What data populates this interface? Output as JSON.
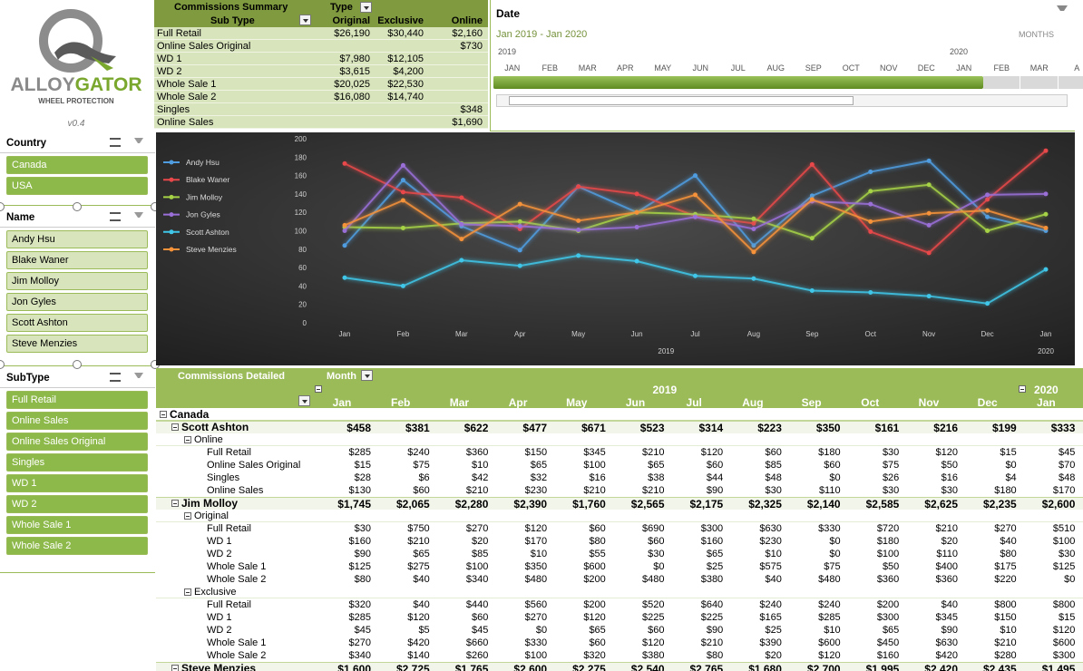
{
  "logo": {
    "brand": "ALLOYGATOR",
    "tagline": "WHEEL PROTECTION",
    "version": "v0.4"
  },
  "summary": {
    "title": "Commissions Summary",
    "type_label": "Type",
    "row_label": "Sub Type",
    "columns": [
      "Original",
      "Exclusive",
      "Online"
    ],
    "rows": [
      [
        "Full Retail",
        "$26,190",
        "$30,440",
        "$2,160"
      ],
      [
        "Online Sales Original",
        null,
        null,
        "$730"
      ],
      [
        "WD 1",
        "$7,980",
        "$12,105",
        null
      ],
      [
        "WD 2",
        "$3,615",
        "$4,200",
        null
      ],
      [
        "Whole Sale 1",
        "$20,025",
        "$22,530",
        null
      ],
      [
        "Whole Sale 2",
        "$16,080",
        "$14,740",
        null
      ],
      [
        "Singles",
        null,
        null,
        "$348"
      ],
      [
        "Online Sales",
        null,
        null,
        "$1,690"
      ]
    ]
  },
  "timeline": {
    "title": "Date",
    "range": "Jan 2019 - Jan 2020",
    "level": "MONTHS",
    "years": [
      "2019",
      "2020"
    ],
    "months": [
      "JAN",
      "FEB",
      "MAR",
      "APR",
      "MAY",
      "JUN",
      "JUL",
      "AUG",
      "SEP",
      "OCT",
      "NOV",
      "DEC",
      "JAN",
      "FEB",
      "MAR",
      "A"
    ]
  },
  "slicers": [
    {
      "title": "Country",
      "items": [
        "Canada",
        "USA"
      ]
    },
    {
      "title": "Name",
      "items": [
        "Andy Hsu",
        "Blake Waner",
        "Jim Molloy",
        "Jon Gyles",
        "Scott Ashton",
        "Steve Menzies"
      ]
    },
    {
      "title": "SubType",
      "items": [
        "Full Retail",
        "Online Sales",
        "Online Sales Original",
        "Singles",
        "WD 1",
        "WD 2",
        "Whole Sale 1",
        "Whole Sale 2"
      ]
    }
  ],
  "chart_data": {
    "type": "line",
    "categories": [
      "Jan",
      "Feb",
      "Mar",
      "Apr",
      "May",
      "Jun",
      "Jul",
      "Aug",
      "Sep",
      "Oct",
      "Nov",
      "Dec",
      "Jan"
    ],
    "x_group_labels": [
      "2019",
      "2020"
    ],
    "ylim": [
      0,
      200
    ],
    "yticks": [
      0,
      20,
      40,
      60,
      80,
      100,
      120,
      140,
      160,
      180,
      200
    ],
    "legend": "top-left",
    "series": [
      {
        "name": "Andy Hsu",
        "color": "#4f9de0",
        "values": [
          84,
          155,
          105,
          79,
          148,
          120,
          160,
          84,
          138,
          164,
          176,
          115,
          100
        ]
      },
      {
        "name": "Blake Waner",
        "color": "#e8484a",
        "values": [
          173,
          142,
          136,
          102,
          148,
          140,
          116,
          108,
          172,
          99,
          76,
          134,
          187
        ]
      },
      {
        "name": "Jim Molloy",
        "color": "#a6d246",
        "values": [
          104,
          103,
          108,
          110,
          100,
          120,
          118,
          113,
          92,
          143,
          150,
          100,
          118
        ]
      },
      {
        "name": "Jon Gyles",
        "color": "#9a6fd8",
        "values": [
          100,
          171,
          107,
          105,
          101,
          104,
          115,
          102,
          132,
          129,
          106,
          139,
          140
        ]
      },
      {
        "name": "Scott Ashton",
        "color": "#3fc6e8",
        "values": [
          49,
          40,
          68,
          62,
          73,
          67,
          51,
          48,
          35,
          33,
          29,
          21,
          58
        ]
      },
      {
        "name": "Steve Menzies",
        "color": "#f5923a",
        "values": [
          106,
          133,
          91,
          129,
          111,
          120,
          139,
          77,
          134,
          110,
          119,
          122,
          103
        ]
      }
    ]
  },
  "detail": {
    "title": "Commissions Detailed",
    "column_label": "Month",
    "years": [
      "2019",
      "2020"
    ],
    "months": [
      "Jan",
      "Feb",
      "Mar",
      "Apr",
      "May",
      "Jun",
      "Jul",
      "Aug",
      "Sep",
      "Oct",
      "Nov",
      "Dec",
      "Jan"
    ],
    "groups": [
      {
        "label": "Canada",
        "people": [
          {
            "name": "Scott Ashton",
            "totals": [
              "$458",
              "$381",
              "$622",
              "$477",
              "$671",
              "$523",
              "$314",
              "$223",
              "$350",
              "$161",
              "$216",
              "$199",
              "$333"
            ],
            "types": [
              {
                "label": "Online",
                "rows": [
                  {
                    "label": "Full Retail",
                    "values": [
                      "$285",
                      "$240",
                      "$360",
                      "$150",
                      "$345",
                      "$210",
                      "$120",
                      "$60",
                      "$180",
                      "$30",
                      "$120",
                      "$15",
                      "$45"
                    ]
                  },
                  {
                    "label": "Online Sales Original",
                    "values": [
                      "$15",
                      "$75",
                      "$10",
                      "$65",
                      "$100",
                      "$65",
                      "$60",
                      "$85",
                      "$60",
                      "$75",
                      "$50",
                      "$0",
                      "$70"
                    ]
                  },
                  {
                    "label": "Singles",
                    "values": [
                      "$28",
                      "$6",
                      "$42",
                      "$32",
                      "$16",
                      "$38",
                      "$44",
                      "$48",
                      "$0",
                      "$26",
                      "$16",
                      "$4",
                      "$48"
                    ]
                  },
                  {
                    "label": "Online Sales",
                    "values": [
                      "$130",
                      "$60",
                      "$210",
                      "$230",
                      "$210",
                      "$210",
                      "$90",
                      "$30",
                      "$110",
                      "$30",
                      "$30",
                      "$180",
                      "$170"
                    ]
                  }
                ]
              }
            ]
          },
          {
            "name": "Jim Molloy",
            "totals": [
              "$1,745",
              "$2,065",
              "$2,280",
              "$2,390",
              "$1,760",
              "$2,565",
              "$2,175",
              "$2,325",
              "$2,140",
              "$2,585",
              "$2,625",
              "$2,235",
              "$2,600"
            ],
            "types": [
              {
                "label": "Original",
                "rows": [
                  {
                    "label": "Full Retail",
                    "values": [
                      "$30",
                      "$750",
                      "$270",
                      "$120",
                      "$60",
                      "$690",
                      "$300",
                      "$630",
                      "$330",
                      "$720",
                      "$210",
                      "$270",
                      "$510"
                    ]
                  },
                  {
                    "label": "WD 1",
                    "values": [
                      "$160",
                      "$210",
                      "$20",
                      "$170",
                      "$80",
                      "$60",
                      "$160",
                      "$230",
                      "$0",
                      "$180",
                      "$20",
                      "$40",
                      "$100"
                    ]
                  },
                  {
                    "label": "WD 2",
                    "values": [
                      "$90",
                      "$65",
                      "$85",
                      "$10",
                      "$55",
                      "$30",
                      "$65",
                      "$10",
                      "$0",
                      "$100",
                      "$110",
                      "$80",
                      "$30"
                    ]
                  },
                  {
                    "label": "Whole Sale 1",
                    "values": [
                      "$125",
                      "$275",
                      "$100",
                      "$350",
                      "$600",
                      "$0",
                      "$25",
                      "$575",
                      "$75",
                      "$50",
                      "$400",
                      "$175",
                      "$125"
                    ]
                  },
                  {
                    "label": "Whole Sale 2",
                    "values": [
                      "$80",
                      "$40",
                      "$340",
                      "$480",
                      "$200",
                      "$480",
                      "$380",
                      "$40",
                      "$480",
                      "$360",
                      "$360",
                      "$220",
                      "$0"
                    ]
                  }
                ]
              },
              {
                "label": "Exclusive",
                "rows": [
                  {
                    "label": "Full Retail",
                    "values": [
                      "$320",
                      "$40",
                      "$440",
                      "$560",
                      "$200",
                      "$520",
                      "$640",
                      "$240",
                      "$240",
                      "$200",
                      "$40",
                      "$800",
                      "$800"
                    ]
                  },
                  {
                    "label": "WD 1",
                    "values": [
                      "$285",
                      "$120",
                      "$60",
                      "$270",
                      "$120",
                      "$225",
                      "$225",
                      "$165",
                      "$285",
                      "$300",
                      "$345",
                      "$150",
                      "$15"
                    ]
                  },
                  {
                    "label": "WD 2",
                    "values": [
                      "$45",
                      "$5",
                      "$45",
                      "$0",
                      "$65",
                      "$60",
                      "$90",
                      "$25",
                      "$10",
                      "$65",
                      "$90",
                      "$10",
                      "$120"
                    ]
                  },
                  {
                    "label": "Whole Sale 1",
                    "values": [
                      "$270",
                      "$420",
                      "$660",
                      "$330",
                      "$60",
                      "$120",
                      "$210",
                      "$390",
                      "$600",
                      "$450",
                      "$630",
                      "$210",
                      "$600"
                    ]
                  },
                  {
                    "label": "Whole Sale 2",
                    "values": [
                      "$340",
                      "$140",
                      "$260",
                      "$100",
                      "$320",
                      "$380",
                      "$80",
                      "$20",
                      "$120",
                      "$160",
                      "$420",
                      "$280",
                      "$300"
                    ]
                  }
                ]
              }
            ]
          },
          {
            "name": "Steve Menzies",
            "totals": [
              "$1,600",
              "$2,725",
              "$1,765",
              "$2,600",
              "$2,275",
              "$2,540",
              "$2,765",
              "$1,680",
              "$2,700",
              "$1,995",
              "$2,420",
              "$2,435",
              "$1,495"
            ]
          }
        ]
      }
    ]
  }
}
